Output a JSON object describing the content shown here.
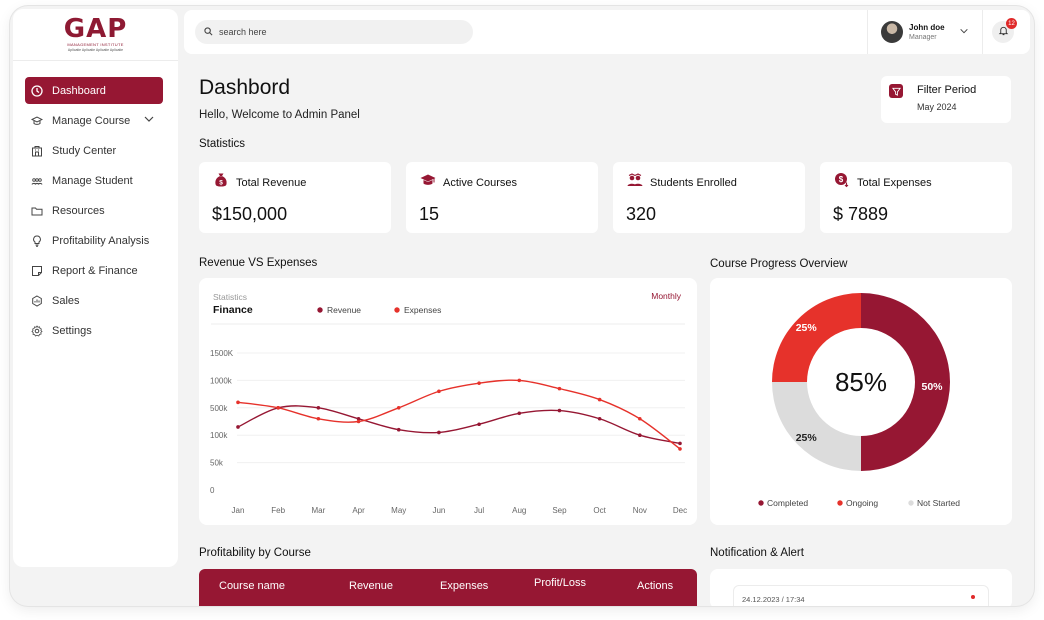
{
  "logo": {
    "text": "GAP",
    "subtitle": "MANAGEMENT INSTITUTE",
    "tagline": "Aplicatie Aplicatie Aplicatie Aplicatie"
  },
  "search": {
    "placeholder": "search here"
  },
  "user": {
    "name": "John doe",
    "role": "Manager"
  },
  "notifications": {
    "count": "12"
  },
  "sidebar": {
    "items": [
      {
        "label": "Dashboard",
        "icon": "clock-icon",
        "active": true
      },
      {
        "label": "Manage Course",
        "icon": "graduation-cap-icon",
        "expandable": true
      },
      {
        "label": "Study Center",
        "icon": "building-icon"
      },
      {
        "label": "Manage Student",
        "icon": "users-icon"
      },
      {
        "label": "Resources",
        "icon": "folder-icon"
      },
      {
        "label": "Profitability Analysis",
        "icon": "lightbulb-icon"
      },
      {
        "label": "Report & Finance",
        "icon": "note-icon"
      },
      {
        "label": "Sales",
        "icon": "sales-icon"
      },
      {
        "label": "Settings",
        "icon": "gear-icon"
      }
    ]
  },
  "page": {
    "title": "Dashbord",
    "welcome": "Hello, Welcome to Admin Panel"
  },
  "filter": {
    "label": "Filter Period",
    "value": "May 2024"
  },
  "statistics": {
    "heading": "Statistics",
    "cards": [
      {
        "label": "Total Revenue",
        "value": "$150,000",
        "icon": "money-bag-icon"
      },
      {
        "label": "Active Courses",
        "value": "15",
        "icon": "graduation-cap-icon"
      },
      {
        "label": "Students Enrolled",
        "value": "320",
        "icon": "students-icon"
      },
      {
        "label": "Total Expenses",
        "value": "$ 7889",
        "icon": "expense-coin-icon"
      }
    ]
  },
  "revenue_chart": {
    "heading": "Revenue VS Expenses",
    "small_label": "Statistics",
    "title": "Finance",
    "period": "Monthly",
    "legend": [
      "Revenue",
      "Expenses"
    ]
  },
  "course_progress": {
    "heading": "Course Progress Overview",
    "center": "85%",
    "legend": [
      "Completed",
      "Ongoing",
      "Not Started"
    ]
  },
  "profitability": {
    "heading": "Profitability by Course",
    "columns": [
      "Course name",
      "Revenue",
      "Expenses",
      "Profit/Loss",
      "Actions"
    ]
  },
  "notification_section": {
    "heading": "Notification & Alert",
    "items": [
      {
        "timestamp": "24.12.2023 / 17:34"
      }
    ]
  },
  "colors": {
    "primary": "#961733",
    "accent": "#e6322b",
    "muted": "#dcdcdc",
    "background": "#f3f3f3"
  },
  "chart_data": [
    {
      "type": "line",
      "title": "Finance",
      "categories": [
        "Jan",
        "Feb",
        "Mar",
        "Apr",
        "May",
        "Jun",
        "Jul",
        "Aug",
        "Sep",
        "Oct",
        "Nov",
        "Dec"
      ],
      "y_tick_labels": [
        "0",
        "50k",
        "100k",
        "500k",
        "1000k",
        "1500K"
      ],
      "series": [
        {
          "name": "Revenue",
          "color": "#961733",
          "values": [
            2.3,
            3.0,
            3.0,
            2.6,
            2.2,
            2.1,
            2.4,
            2.8,
            2.9,
            2.6,
            2.0,
            1.7
          ]
        },
        {
          "name": "Expenses",
          "color": "#e6322b",
          "values": [
            3.2,
            3.0,
            2.6,
            2.5,
            3.0,
            3.6,
            3.9,
            4.0,
            3.7,
            3.3,
            2.6,
            1.5
          ]
        }
      ],
      "legend_position": "top",
      "grid": true
    },
    {
      "type": "pie",
      "title": "",
      "center_label": "85%",
      "slices": [
        {
          "name": "Completed",
          "value": 50,
          "label": "50%",
          "color": "#961733"
        },
        {
          "name": "Not Started",
          "value": 25,
          "label": "25%",
          "color": "#dcdcdc"
        },
        {
          "name": "Ongoing",
          "value": 25,
          "label": "25%",
          "color": "#e6322b"
        }
      ]
    }
  ]
}
